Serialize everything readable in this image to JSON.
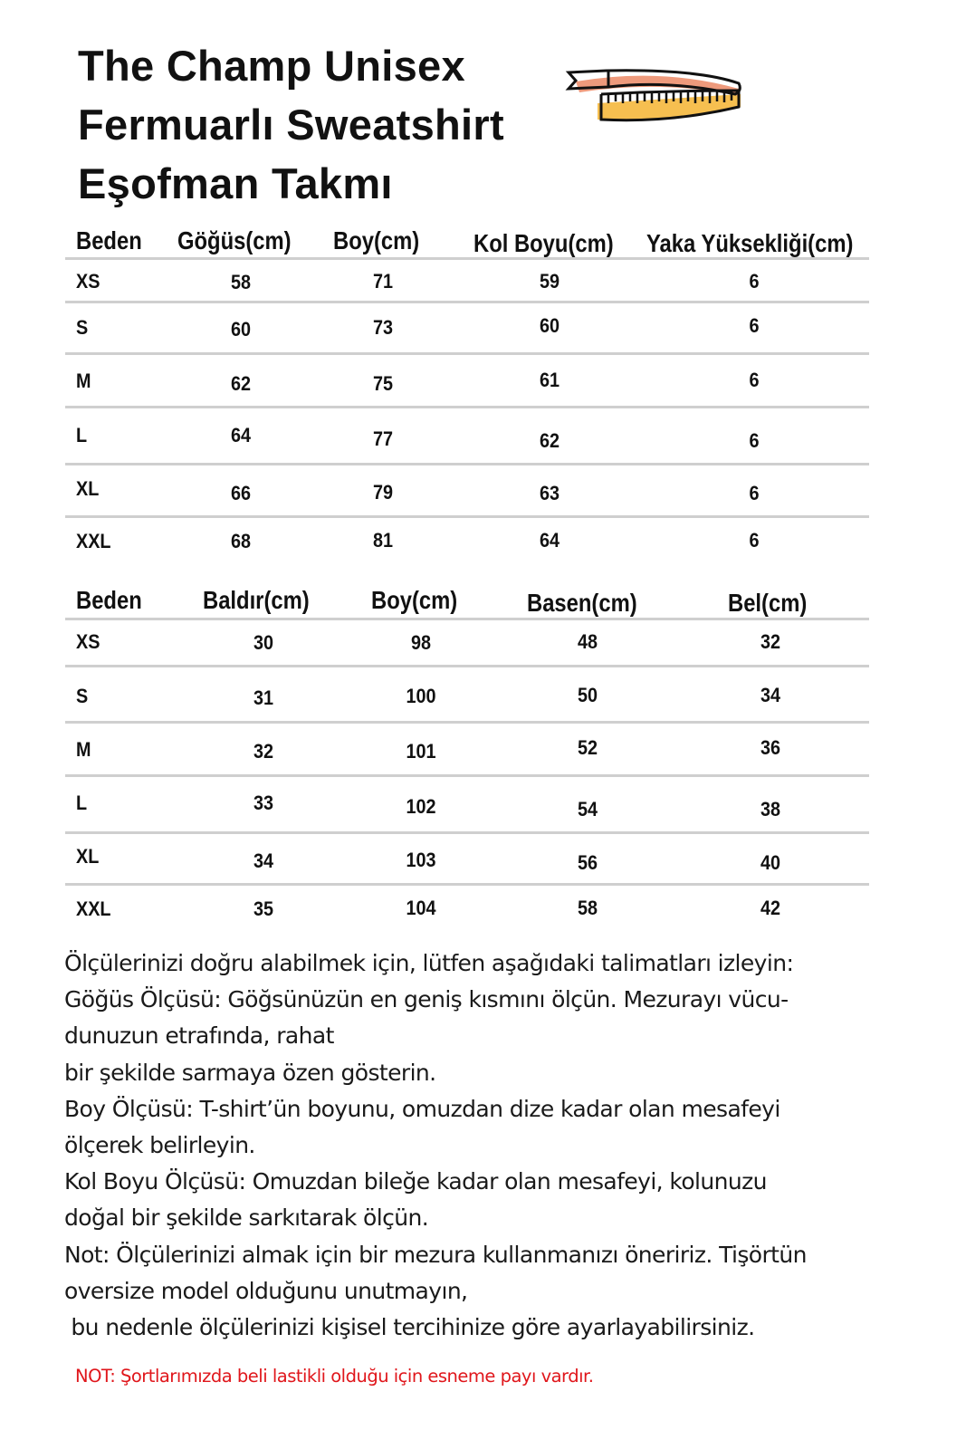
{
  "title": [
    "The Champ Unisex",
    "Fermuarlı Sweatshirt",
    "Eşofman Takmı"
  ],
  "icon": "measuring-tape-icon",
  "colors": {
    "tape_pink": "#ee9a7c",
    "tape_yellow": "#f5b83d",
    "note_red": "#e0161b",
    "rule": "#cfcfcf"
  },
  "top_table": {
    "headers": [
      "Beden",
      "Göğüs(cm)",
      "Boy(cm)",
      "Kol Boyu(cm)",
      "Yaka Yüksekliği(cm)"
    ],
    "rows": [
      [
        "XS",
        "58",
        "71",
        "59",
        "6"
      ],
      [
        "S",
        "60",
        "73",
        "60",
        "6"
      ],
      [
        "M",
        "62",
        "75",
        "61",
        "6"
      ],
      [
        "L",
        "64",
        "77",
        "62",
        "6"
      ],
      [
        "XL",
        "66",
        "79",
        "63",
        "6"
      ],
      [
        "XXL",
        "68",
        "81",
        "64",
        "6"
      ]
    ]
  },
  "bottom_table": {
    "headers": [
      "Beden",
      "Baldır(cm)",
      "Boy(cm)",
      "Basen(cm)",
      "Bel(cm)"
    ],
    "rows": [
      [
        "XS",
        "30",
        "98",
        "48",
        "32"
      ],
      [
        "S",
        "31",
        "100",
        "50",
        "34"
      ],
      [
        "M",
        "32",
        "101",
        "52",
        "36"
      ],
      [
        "L",
        "33",
        "102",
        "54",
        "38"
      ],
      [
        "XL",
        "34",
        "103",
        "56",
        "40"
      ],
      [
        "XXL",
        "35",
        "104",
        "58",
        "42"
      ]
    ]
  },
  "instructions": [
    "Ölçülerinizi doğru alabilmek için, lütfen aşağıdaki talimatları izleyin:",
    "Göğüs Ölçüsü: Göğsünüzün en geniş kısmını ölçün. Mezurayı vücu-",
    "dunuzun etrafında, rahat",
    "bir şekilde sarmaya özen gösterin.",
    "Boy Ölçüsü: T-shirt’ün boyunu, omuzdan dize kadar olan mesafeyi",
    "ölçerek belirleyin.",
    "Kol Boyu Ölçüsü: Omuzdan bileğe kadar olan mesafeyi, kolunuzu",
    "doğal bir şekilde sarkıtarak ölçün.",
    "Not: Ölçülerinizi almak için bir mezura kullanmanızı öneririz. Tişörtün",
    "oversize model olduğunu unutmayın,",
    " bu nedenle ölçülerinizi kişisel tercihinize göre ayarlayabilirsiniz."
  ],
  "red_note": "NOT: Şortlarımızda beli lastikli olduğu için esneme payı vardır."
}
